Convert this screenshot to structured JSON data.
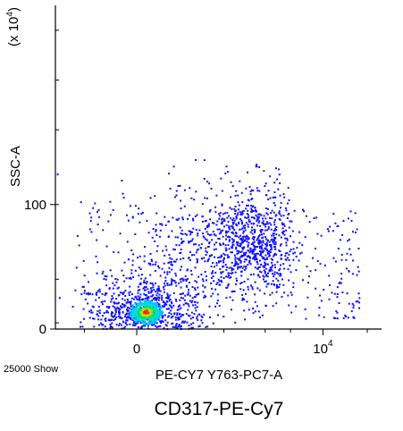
{
  "chart_data": {
    "type": "scatter",
    "plot_kind": "flow-cytometry-density-dot-plot",
    "title": "CD317-PE-Cy7",
    "xlabel": "PE-CY7 Y763-PC7-A",
    "ylabel": "SSC-A",
    "y_multiplier_label": "(x 10",
    "y_multiplier_exp": "4",
    "x_ticks": [
      {
        "value": 0,
        "label": "0",
        "exp": ""
      },
      {
        "value": 10000,
        "label": "10",
        "exp": "4"
      }
    ],
    "y_ticks": [
      {
        "value": 0,
        "label": "0"
      },
      {
        "value": 100,
        "label": "100"
      }
    ],
    "x_scale": "biexponential",
    "xlim": [
      -1800,
      25000
    ],
    "ylim": [
      0,
      260
    ],
    "event_count_label": "25000 Show",
    "grid": false,
    "legend": "none",
    "colors": {
      "low_density": "#1010ff",
      "mid_density": "#00c8ff",
      "high_density": "#00e070",
      "peak_density": "#ff3000",
      "axis": "#000000"
    },
    "populations": [
      {
        "name": "",
        "x_center": 150,
        "y_center": 14,
        "x_spread": 260,
        "y_spread": 10,
        "events": 900,
        "density": "high"
      },
      {
        "name": "",
        "x_center": 2600,
        "y_center": 70,
        "x_spread": 1600,
        "y_spread": 22,
        "events": 1100,
        "density": "low"
      }
    ]
  }
}
